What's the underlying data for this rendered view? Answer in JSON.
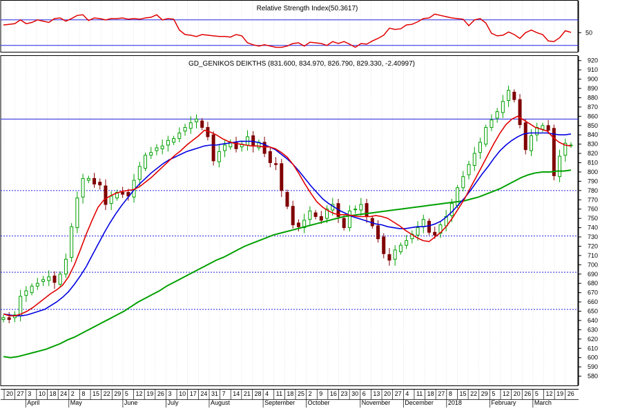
{
  "chart_data": [
    {
      "type": "line",
      "title": "Relative Strength Index(50.3617)",
      "y_tick_labels": [
        "50"
      ],
      "y_tick_values": [
        50
      ],
      "ylim": [
        20,
        100
      ],
      "reference_levels": [
        70,
        30
      ],
      "grid": true,
      "colors": {
        "rsi": "#e00000",
        "reference": "#2020e0"
      },
      "series": [
        {
          "values": [
            62,
            63,
            64,
            70,
            64,
            66,
            70,
            68,
            66,
            72,
            73,
            68,
            72,
            77,
            78,
            69,
            73,
            72,
            70,
            72,
            72,
            73,
            71,
            72,
            71,
            73,
            74,
            78,
            70,
            72,
            71,
            54,
            47,
            46,
            44,
            47,
            46,
            45,
            44,
            44,
            43,
            47,
            45,
            34,
            31,
            29,
            31,
            29,
            27,
            27,
            29,
            33,
            34,
            29,
            35,
            34,
            33,
            30,
            36,
            33,
            36,
            32,
            27,
            33,
            32,
            37,
            41,
            46,
            57,
            55,
            56,
            62,
            63,
            67,
            72,
            73,
            79,
            77,
            75,
            73,
            72,
            71,
            61,
            70,
            72,
            65,
            49,
            45,
            46,
            51,
            47,
            41,
            50,
            54,
            50,
            47,
            37,
            36,
            42,
            53,
            50.36
          ]
        }
      ]
    },
    {
      "type": "line",
      "title": "GD_GENIKOS DEIKTHS (831.600, 834.970, 826.790, 829.330, -2.40997)",
      "ylim": [
        570,
        925
      ],
      "y_tick_labels": [
        "920",
        "910",
        "900",
        "890",
        "880",
        "870",
        "860",
        "850",
        "840",
        "830",
        "820",
        "810",
        "800",
        "790",
        "780",
        "770",
        "760",
        "750",
        "740",
        "730",
        "720",
        "710",
        "700",
        "690",
        "680",
        "670",
        "660",
        "650",
        "640",
        "630",
        "620",
        "610",
        "600",
        "590",
        "580"
      ],
      "y_tick_values": [
        920,
        910,
        900,
        890,
        880,
        870,
        860,
        850,
        840,
        830,
        820,
        810,
        800,
        790,
        780,
        770,
        760,
        750,
        740,
        730,
        720,
        710,
        700,
        690,
        680,
        670,
        660,
        650,
        640,
        630,
        620,
        610,
        600,
        590,
        580
      ],
      "reference_levels": [
        857,
        780,
        731,
        692,
        652
      ],
      "colors": {
        "candle_up": "#00a000",
        "candle_down": "#800000",
        "ma_fast": "#e00000",
        "ma_mid": "#0000e0",
        "ma_slow": "#00a000",
        "reference": "#2020e0"
      },
      "x_day_labels": [
        "20",
        "27",
        "3",
        "10",
        "18",
        "24",
        "2",
        "8",
        "15",
        "22",
        "29",
        "5",
        "12",
        "19",
        "26",
        "3",
        "10",
        "17",
        "24",
        "31",
        "7",
        "14",
        "21",
        "28",
        "4",
        "11",
        "18",
        "25",
        "2",
        "9",
        "16",
        "23",
        "30",
        "6",
        "13",
        "20",
        "27",
        "4",
        "11",
        "18",
        "27",
        "8",
        "15",
        "22",
        "29",
        "5",
        "12",
        "20",
        "26",
        "5",
        "12",
        "19",
        "26"
      ],
      "x_month_labels": [
        "April",
        "May",
        "June",
        "July",
        "August",
        "September",
        "October",
        "November",
        "December",
        "2018",
        "February",
        "March"
      ],
      "close": [
        643,
        641,
        646,
        666,
        672,
        677,
        680,
        684,
        687,
        681,
        690,
        706,
        741,
        772,
        793,
        793,
        787,
        786,
        765,
        774,
        778,
        776,
        774,
        791,
        806,
        818,
        821,
        826,
        828,
        834,
        836,
        842,
        848,
        853,
        857,
        848,
        838,
        812,
        822,
        829,
        832,
        825,
        830,
        838,
        828,
        832,
        820,
        810,
        808,
        780,
        763,
        743,
        741,
        748,
        758,
        752,
        748,
        760,
        765,
        752,
        740,
        758,
        760,
        765,
        752,
        742,
        728,
        712,
        705,
        716,
        721,
        726,
        733,
        740,
        749,
        735,
        732,
        743,
        752,
        766,
        783,
        795,
        808,
        820,
        832,
        848,
        856,
        865,
        876,
        888,
        878,
        851,
        824,
        839,
        848,
        850,
        845,
        796,
        817,
        831,
        829
      ],
      "ma_fast": [
        647,
        645,
        645,
        647,
        650,
        654,
        659,
        664,
        669,
        673,
        678,
        687,
        700,
        716,
        733,
        748,
        762,
        770,
        774,
        777,
        779,
        780,
        781,
        784,
        789,
        794,
        800,
        806,
        812,
        818,
        823,
        829,
        834,
        839,
        845,
        843,
        840,
        836,
        833,
        831,
        830,
        829,
        828,
        828,
        827,
        827,
        825,
        821,
        816,
        808,
        798,
        787,
        777,
        768,
        762,
        758,
        755,
        754,
        754,
        753,
        752,
        752,
        752,
        753,
        752,
        750,
        746,
        742,
        737,
        733,
        729,
        726,
        725,
        730,
        735,
        742,
        751,
        761,
        771,
        783,
        795,
        807,
        819,
        831,
        842,
        851,
        857,
        860,
        856,
        852,
        848,
        846,
        844,
        837,
        832,
        829,
        828
      ],
      "ma_mid": [
        647,
        646,
        645,
        645,
        646,
        648,
        650,
        652,
        656,
        660,
        665,
        671,
        679,
        688,
        698,
        710,
        722,
        734,
        745,
        755,
        764,
        772,
        780,
        787,
        793,
        799,
        804,
        809,
        813,
        816,
        819,
        822,
        824,
        826,
        828,
        829,
        829,
        830,
        831,
        832,
        833,
        833,
        833,
        832,
        830,
        827,
        824,
        819,
        814,
        808,
        801,
        793,
        785,
        778,
        771,
        766,
        762,
        758,
        755,
        752,
        750,
        748,
        746,
        744,
        743,
        741,
        740,
        739,
        739,
        740,
        741,
        741,
        742,
        744,
        747,
        752,
        758,
        765,
        772,
        780,
        789,
        798,
        806,
        815,
        823,
        829,
        834,
        838,
        841,
        842,
        842,
        842,
        842,
        841,
        840,
        840,
        841
      ],
      "ma_slow": [
        601,
        600,
        601,
        603,
        605,
        607,
        609,
        612,
        615,
        619,
        622,
        626,
        630,
        634,
        638,
        642,
        646,
        650,
        655,
        660,
        664,
        668,
        672,
        677,
        681,
        685,
        689,
        693,
        697,
        701,
        705,
        708,
        712,
        716,
        720,
        723,
        726,
        729,
        732,
        734,
        736,
        738,
        740,
        742,
        744,
        746,
        748,
        750,
        752,
        753,
        754,
        755,
        756,
        757,
        758,
        759,
        760,
        761,
        762,
        763,
        764,
        765,
        766,
        767,
        768,
        769,
        771,
        773,
        776,
        779,
        782,
        786,
        790,
        794,
        797,
        799,
        800,
        800,
        801,
        801,
        802
      ]
    }
  ]
}
